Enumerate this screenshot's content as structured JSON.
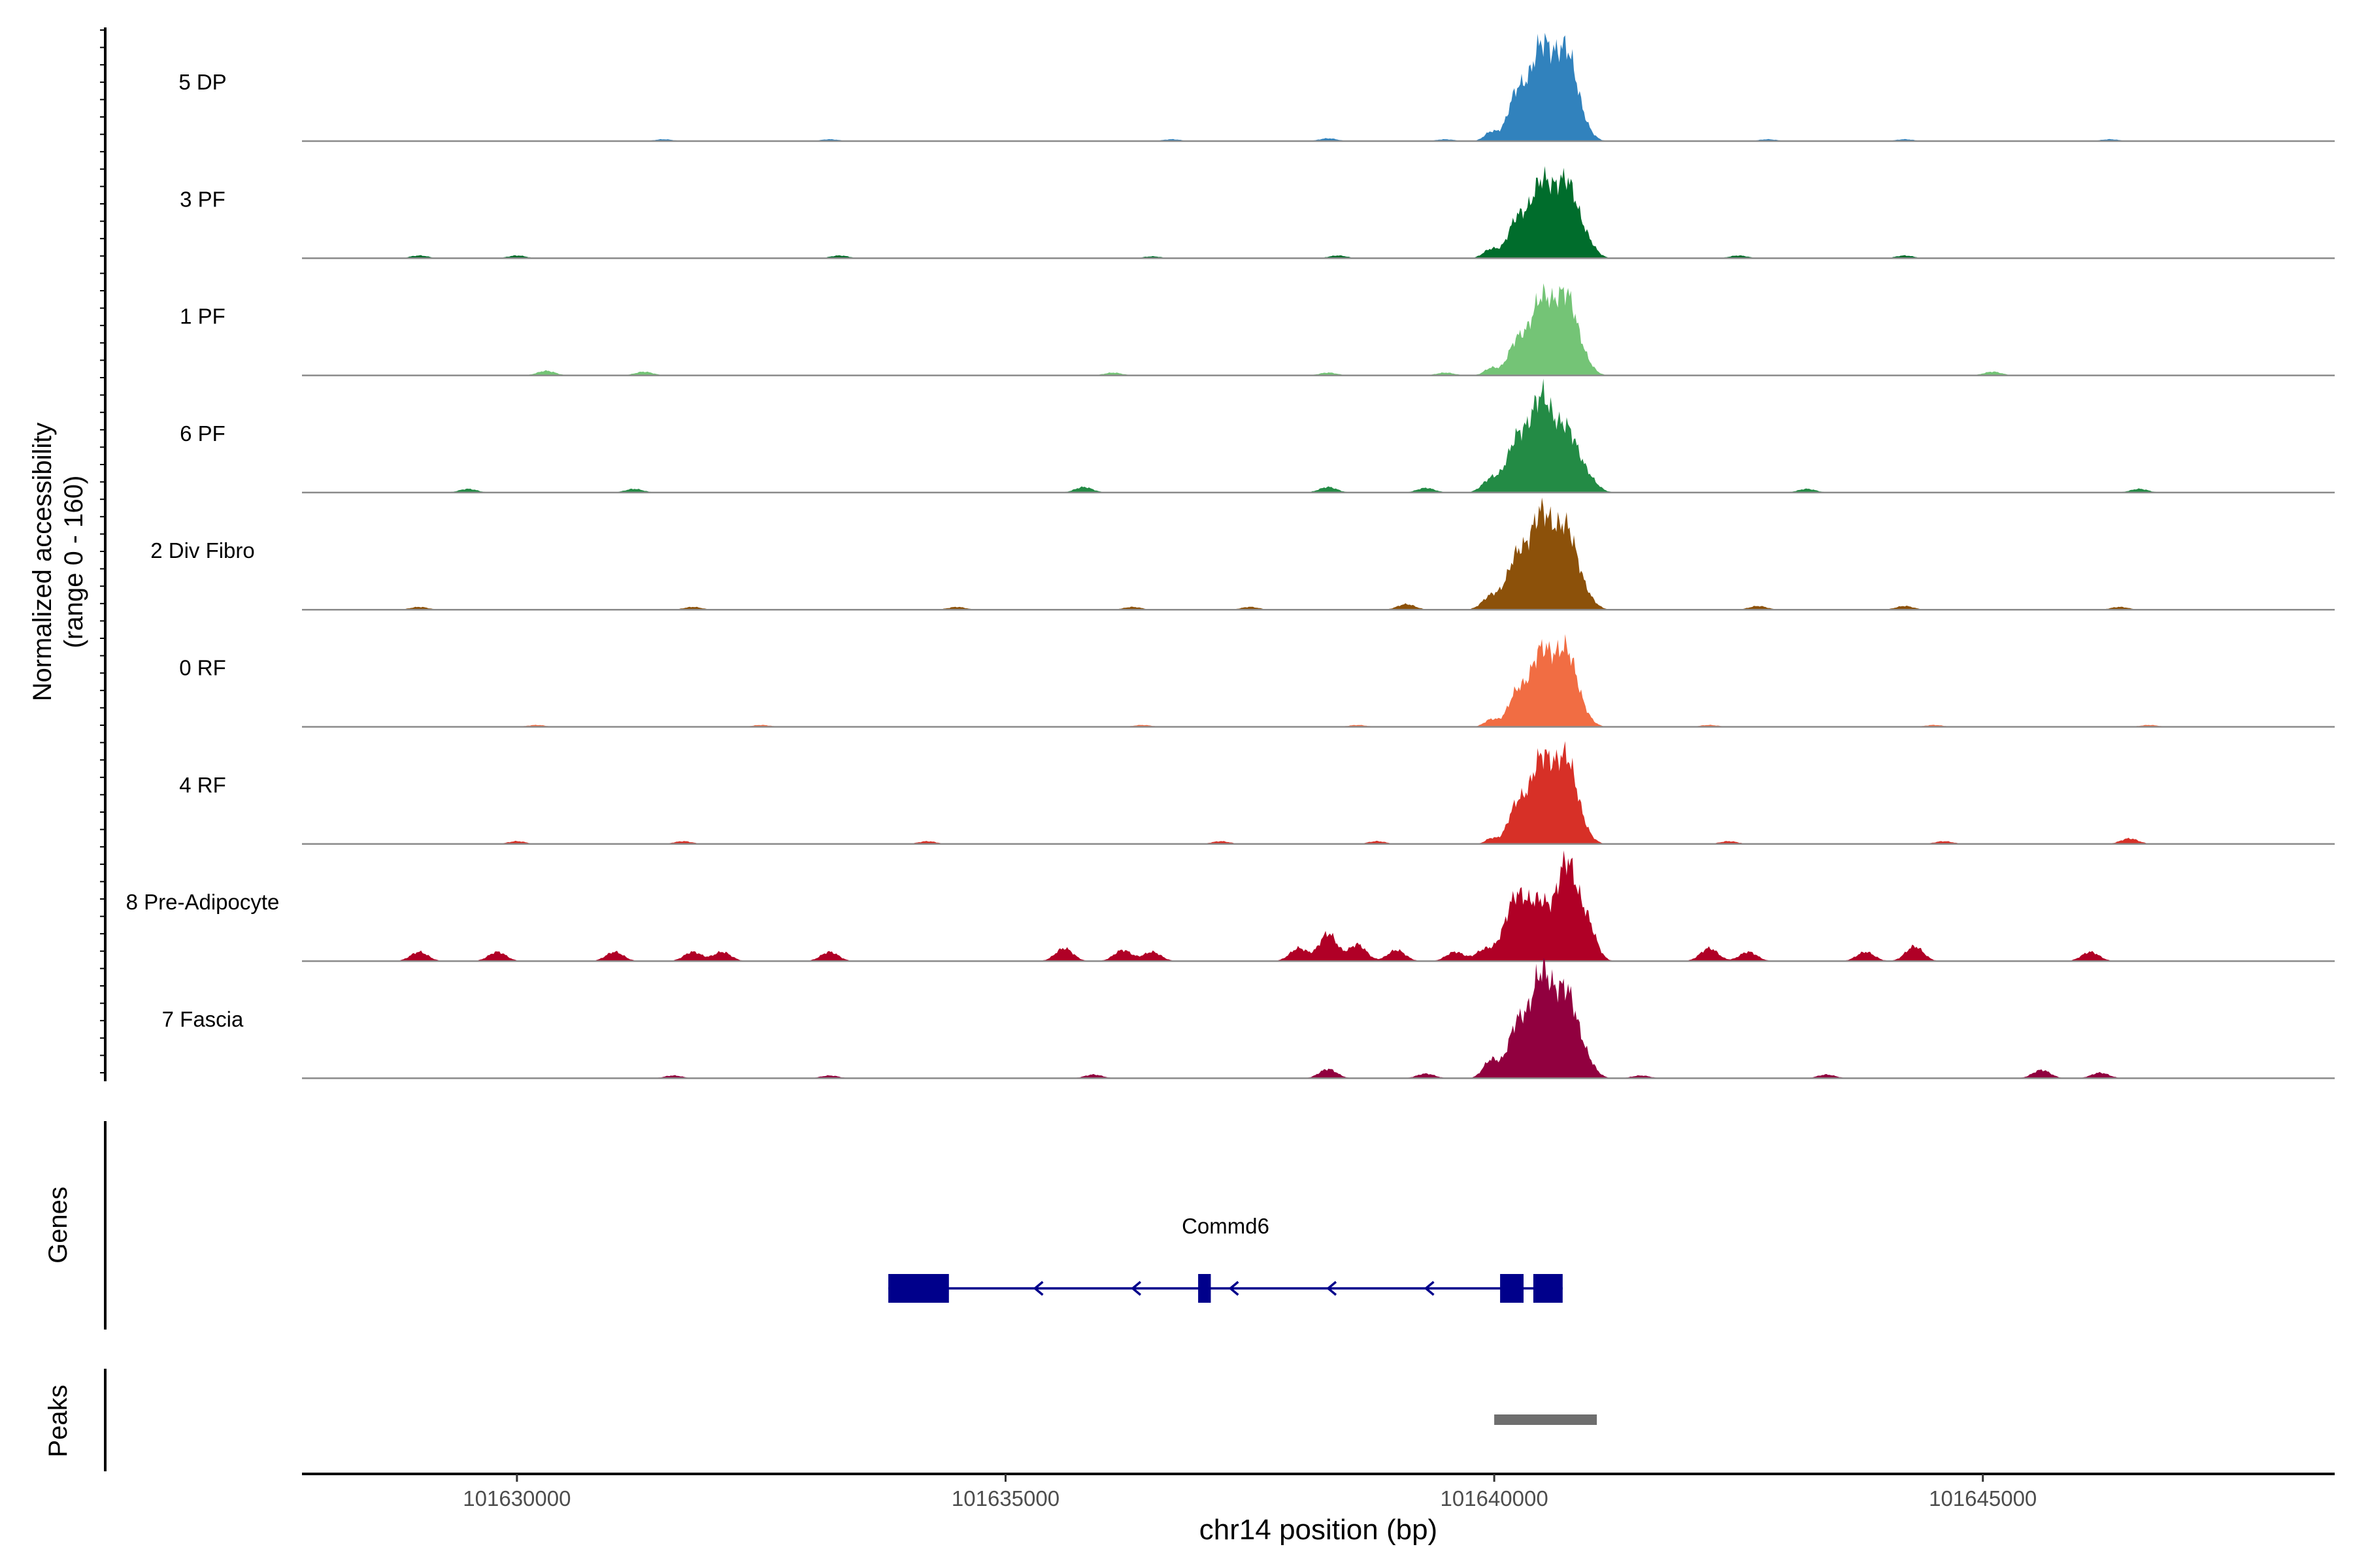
{
  "chart_data": {
    "type": "area",
    "title": "",
    "xlabel": "chr14 position (bp)",
    "ylabel_main": "Normalized accessibility",
    "ylabel_range": "(range 0 - 160)",
    "ylim": [
      0,
      160
    ],
    "xlim": [
      101627800,
      101648600
    ],
    "x_ticks": [
      101630000,
      101635000,
      101640000,
      101645000
    ],
    "x_tick_labels": [
      "101630000",
      "101635000",
      "101640000",
      "101645000"
    ],
    "tracks": [
      {
        "name": "5 DP",
        "color": "#3182bd",
        "peaks": [
          [
            101639970,
            10,
            70
          ],
          [
            101640230,
            50,
            90
          ],
          [
            101640480,
            100,
            110
          ],
          [
            101640740,
            95,
            110
          ],
          [
            101640950,
            6,
            80
          ]
        ],
        "noise": [
          [
            101631500,
            2
          ],
          [
            101633200,
            2
          ],
          [
            101636700,
            2
          ],
          [
            101638300,
            3
          ],
          [
            101639500,
            2
          ],
          [
            101642800,
            2
          ],
          [
            101644200,
            2
          ],
          [
            101646300,
            2
          ]
        ]
      },
      {
        "name": "3 PF",
        "color": "#006d2c",
        "peaks": [
          [
            101639970,
            10,
            80
          ],
          [
            101640230,
            40,
            90
          ],
          [
            101640480,
            80,
            110
          ],
          [
            101640740,
            80,
            110
          ],
          [
            101640950,
            15,
            90
          ]
        ],
        "noise": [
          [
            101629000,
            3
          ],
          [
            101630000,
            3
          ],
          [
            101633300,
            3
          ],
          [
            101636500,
            2
          ],
          [
            101638400,
            3
          ],
          [
            101642500,
            3
          ],
          [
            101644200,
            3
          ]
        ]
      },
      {
        "name": "1 PF",
        "color": "#74c476",
        "peaks": [
          [
            101639970,
            8,
            70
          ],
          [
            101640230,
            35,
            90
          ],
          [
            101640480,
            80,
            110
          ],
          [
            101640740,
            85,
            110
          ],
          [
            101640950,
            8,
            80
          ]
        ],
        "noise": [
          [
            101630300,
            5
          ],
          [
            101631300,
            4
          ],
          [
            101636100,
            3
          ],
          [
            101638300,
            3
          ],
          [
            101639500,
            3
          ],
          [
            101645100,
            4
          ]
        ]
      },
      {
        "name": "6 PF",
        "color": "#238b45",
        "peaks": [
          [
            101639970,
            15,
            90
          ],
          [
            101640230,
            55,
            100
          ],
          [
            101640480,
            100,
            110
          ],
          [
            101640740,
            65,
            110
          ],
          [
            101640950,
            15,
            100
          ]
        ],
        "noise": [
          [
            101629500,
            4
          ],
          [
            101631200,
            4
          ],
          [
            101635800,
            6
          ],
          [
            101638300,
            6
          ],
          [
            101639300,
            5
          ],
          [
            101643200,
            4
          ],
          [
            101646600,
            4
          ]
        ]
      },
      {
        "name": "2 Div Fibro",
        "color": "#8c510a",
        "peaks": [
          [
            101639970,
            15,
            90
          ],
          [
            101640230,
            55,
            100
          ],
          [
            101640480,
            100,
            110
          ],
          [
            101640740,
            85,
            110
          ],
          [
            101640950,
            10,
            90
          ]
        ],
        "noise": [
          [
            101629000,
            3
          ],
          [
            101631800,
            3
          ],
          [
            101634500,
            3
          ],
          [
            101636300,
            3
          ],
          [
            101637500,
            3
          ],
          [
            101639100,
            6
          ],
          [
            101642700,
            4
          ],
          [
            101644200,
            4
          ],
          [
            101646400,
            3
          ]
        ]
      },
      {
        "name": "0 RF",
        "color": "#f16d43",
        "peaks": [
          [
            101639970,
            8,
            70
          ],
          [
            101640230,
            35,
            90
          ],
          [
            101640480,
            80,
            110
          ],
          [
            101640740,
            80,
            110
          ],
          [
            101640950,
            5,
            80
          ]
        ],
        "noise": [
          [
            101630200,
            2
          ],
          [
            101632500,
            2
          ],
          [
            101636400,
            2
          ],
          [
            101638600,
            2
          ],
          [
            101642200,
            2
          ],
          [
            101644500,
            2
          ],
          [
            101646700,
            2
          ]
        ]
      },
      {
        "name": "4 RF",
        "color": "#d73027",
        "peaks": [
          [
            101639970,
            6,
            60
          ],
          [
            101640230,
            40,
            90
          ],
          [
            101640480,
            90,
            110
          ],
          [
            101640740,
            90,
            110
          ],
          [
            101640950,
            5,
            80
          ]
        ],
        "noise": [
          [
            101630000,
            3
          ],
          [
            101631700,
            3
          ],
          [
            101634200,
            3
          ],
          [
            101637200,
            3
          ],
          [
            101638800,
            3
          ],
          [
            101642400,
            3
          ],
          [
            101644600,
            3
          ],
          [
            101646500,
            6
          ]
        ]
      },
      {
        "name": "8 Pre-Adipocyte",
        "color": "#b00026",
        "peaks": [
          [
            101640230,
            70,
            120
          ],
          [
            101640480,
            55,
            100
          ],
          [
            101640740,
            105,
            100
          ],
          [
            101640950,
            40,
            90
          ]
        ],
        "noise": [
          [
            101629000,
            10
          ],
          [
            101629800,
            10
          ],
          [
            101631000,
            10
          ],
          [
            101631800,
            10
          ],
          [
            101632100,
            10
          ],
          [
            101633200,
            10
          ],
          [
            101635600,
            14
          ],
          [
            101636200,
            12
          ],
          [
            101636500,
            10
          ],
          [
            101638000,
            14
          ],
          [
            101638300,
            30
          ],
          [
            101638600,
            18
          ],
          [
            101639000,
            12
          ],
          [
            101639600,
            10
          ],
          [
            101639900,
            12
          ],
          [
            101642200,
            14
          ],
          [
            101642600,
            10
          ],
          [
            101643800,
            10
          ],
          [
            101644300,
            16
          ],
          [
            101646100,
            10
          ]
        ]
      },
      {
        "name": "7 Fascia",
        "color": "#91003f",
        "peaks": [
          [
            101639970,
            20,
            80
          ],
          [
            101640230,
            55,
            90
          ],
          [
            101640480,
            110,
            110
          ],
          [
            101640740,
            90,
            110
          ],
          [
            101640950,
            15,
            90
          ]
        ],
        "noise": [
          [
            101631600,
            3
          ],
          [
            101633200,
            3
          ],
          [
            101635900,
            4
          ],
          [
            101638300,
            10
          ],
          [
            101639300,
            5
          ],
          [
            101641500,
            3
          ],
          [
            101643400,
            4
          ],
          [
            101645600,
            9
          ],
          [
            101646200,
            6
          ]
        ]
      }
    ],
    "genes": [
      {
        "name": "Commd6",
        "start": 101633800,
        "end": 101640700,
        "strand": "-",
        "exons": [
          [
            101633800,
            101634420
          ],
          [
            101636970,
            101637100
          ],
          [
            101640060,
            101640300
          ],
          [
            101640400,
            101640700
          ]
        ],
        "color": "#00008b"
      }
    ],
    "gene_track_label": "Genes",
    "peaks_track_label": "Peaks",
    "called_peaks": [
      [
        101640000,
        101641050
      ]
    ],
    "peak_color": "#6e6e6e"
  }
}
